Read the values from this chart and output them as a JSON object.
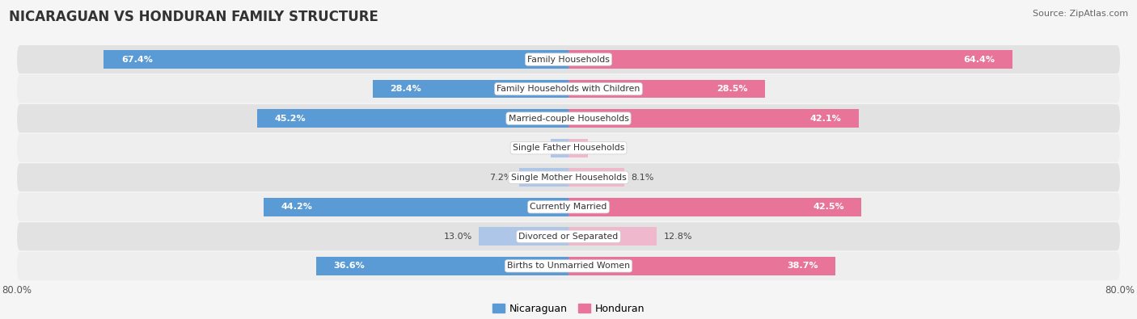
{
  "title": "NICARAGUAN VS HONDURAN FAMILY STRUCTURE",
  "source": "Source: ZipAtlas.com",
  "categories": [
    "Family Households",
    "Family Households with Children",
    "Married-couple Households",
    "Single Father Households",
    "Single Mother Households",
    "Currently Married",
    "Divorced or Separated",
    "Births to Unmarried Women"
  ],
  "nicaraguan_values": [
    67.4,
    28.4,
    45.2,
    2.6,
    7.2,
    44.2,
    13.0,
    36.6
  ],
  "honduran_values": [
    64.4,
    28.5,
    42.1,
    2.8,
    8.1,
    42.5,
    12.8,
    38.7
  ],
  "blue_color_large": "#5b9bd5",
  "blue_color_small": "#aec6e8",
  "pink_color_large": "#e8749a",
  "pink_color_small": "#f0b8cc",
  "row_bg_dark": "#e2e2e2",
  "row_bg_light": "#eeeeee",
  "fig_bg": "#f5f5f5",
  "xlim": 80,
  "legend_nicaraguan": "Nicaraguan",
  "legend_honduran": "Honduran",
  "value_threshold": 15,
  "bar_height": 0.62
}
